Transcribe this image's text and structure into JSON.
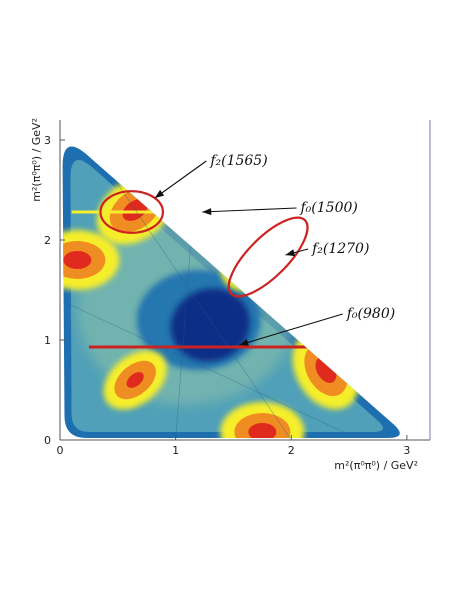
{
  "chart_data": {
    "type": "heatmap",
    "title": "",
    "xlabel": "m²(π⁰π⁰) / GeV²",
    "ylabel": "m²(π⁰π⁰) / GeV²",
    "xlim": [
      0,
      3.2
    ],
    "ylim": [
      0,
      3.2
    ],
    "x_ticks": [
      "0",
      "1",
      "2",
      "3"
    ],
    "y_ticks": [
      "0",
      "1",
      "2",
      "3"
    ],
    "grid": false,
    "legend": "none",
    "colors": {
      "outer": "#1e6fb0",
      "body": "#4fa0b8",
      "light": "#8fc3a8",
      "yellow": "#f6ee2c",
      "orange": "#f08d22",
      "red": "#e02a1e",
      "dark": "#082f86",
      "mark": "#cc2222"
    },
    "density_regions": [
      {
        "x": 0.65,
        "y": 2.3,
        "level": "high"
      },
      {
        "x": 0.15,
        "y": 1.8,
        "level": "high"
      },
      {
        "x": 1.7,
        "y": 1.85,
        "level": "high"
      },
      {
        "x": 0.65,
        "y": 0.6,
        "level": "medium"
      },
      {
        "x": 1.75,
        "y": 0.08,
        "level": "high"
      },
      {
        "x": 2.3,
        "y": 0.7,
        "level": "high"
      },
      {
        "x": 1.3,
        "y": 1.15,
        "level": "low"
      }
    ],
    "bands": [
      {
        "orientation": "horizontal",
        "y": 2.28,
        "x_start": 0.1,
        "x_end": 1.15,
        "color": "#f6ee2c"
      },
      {
        "orientation": "horizontal",
        "y": 0.93,
        "x_start": 0.25,
        "x_end": 2.45,
        "color": "#cc2222"
      }
    ],
    "ellipses": [
      {
        "cx": 0.62,
        "cy": 2.28,
        "rx": 0.27,
        "ry": 0.18,
        "angle": 0
      },
      {
        "cx": 1.8,
        "cy": 1.83,
        "rx": 0.45,
        "ry": 0.17,
        "angle": -45
      }
    ],
    "annotations": [
      {
        "label": "f₂(1565)",
        "text_x": 1.3,
        "text_y": 2.75,
        "arrow_to": [
          0.82,
          2.42
        ]
      },
      {
        "label": "f₀(1500)",
        "text_x": 2.08,
        "text_y": 2.28,
        "arrow_to": [
          1.23,
          2.28
        ]
      },
      {
        "label": "f₂(1270)",
        "text_x": 2.18,
        "text_y": 1.87,
        "arrow_to": [
          1.95,
          1.85
        ]
      },
      {
        "label": "f₀(980)",
        "text_x": 2.48,
        "text_y": 1.22,
        "arrow_to": [
          1.55,
          0.95
        ]
      }
    ]
  }
}
